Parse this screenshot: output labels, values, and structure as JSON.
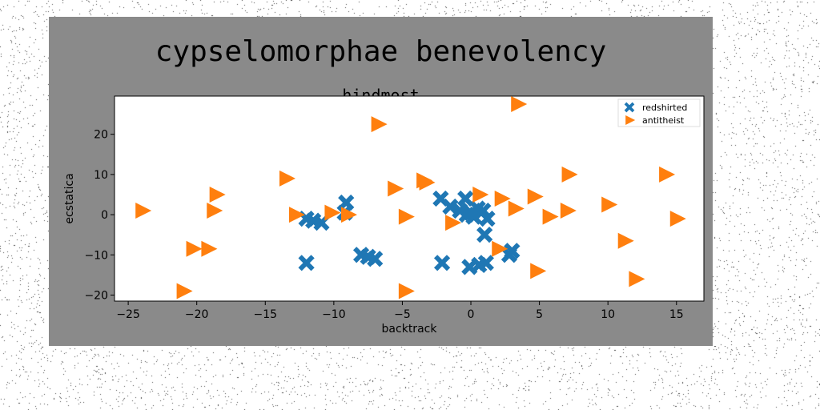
{
  "chart_data": {
    "type": "scatter",
    "title": "cypselomorphae benevolency",
    "subtitle": "hindmost",
    "xlabel": "backtrack",
    "ylabel": "ecstatica",
    "xlim": [
      -26,
      17
    ],
    "ylim": [
      -21.5,
      29.5
    ],
    "xticks": [
      -25,
      -20,
      -15,
      -10,
      -5,
      0,
      5,
      10,
      15
    ],
    "yticks": [
      -20,
      -10,
      0,
      10,
      20
    ],
    "xtick_labels": [
      "−25",
      "−20",
      "−15",
      "−10",
      "−5",
      "0",
      "5",
      "10",
      "15"
    ],
    "ytick_labels": [
      "−20",
      "−10",
      "0",
      "10",
      "20"
    ],
    "grid": false,
    "legend_position": "top-right",
    "series": [
      {
        "name": "redshirted",
        "marker": "x",
        "color": "#1f77b4",
        "points": [
          [
            -9.1,
            3.0
          ],
          [
            -9.2,
            0.5
          ],
          [
            -12.0,
            -1.0
          ],
          [
            -11.5,
            -1.5
          ],
          [
            -10.9,
            -2.0
          ],
          [
            -12.0,
            -12.0
          ],
          [
            -8.0,
            -10.0
          ],
          [
            -7.5,
            -10.5
          ],
          [
            -7.0,
            -11.0
          ],
          [
            -2.2,
            4.0
          ],
          [
            -1.5,
            2.0
          ],
          [
            -0.8,
            1.0
          ],
          [
            -0.4,
            4.0
          ],
          [
            -0.3,
            0.0
          ],
          [
            0.0,
            0.5
          ],
          [
            0.2,
            -0.5
          ],
          [
            0.5,
            1.5
          ],
          [
            0.9,
            1.0
          ],
          [
            1.2,
            -1.0
          ],
          [
            1.0,
            -5.0
          ],
          [
            3.0,
            -9.0
          ],
          [
            2.8,
            -10.0
          ],
          [
            -2.1,
            -12.0
          ],
          [
            -0.1,
            -13.0
          ],
          [
            0.6,
            -12.5
          ],
          [
            1.1,
            -12.0
          ]
        ]
      },
      {
        "name": "antitheist",
        "marker": ">",
        "color": "#ff7f0e",
        "points": [
          [
            -24.0,
            1.0
          ],
          [
            -21.0,
            -19.0
          ],
          [
            -20.3,
            -8.5
          ],
          [
            -19.2,
            -8.5
          ],
          [
            -18.6,
            5.0
          ],
          [
            -18.8,
            1.0
          ],
          [
            -13.5,
            9.0
          ],
          [
            -12.8,
            0.0
          ],
          [
            -10.2,
            0.5
          ],
          [
            -9.0,
            0.0
          ],
          [
            -6.8,
            22.5
          ],
          [
            -5.6,
            6.5
          ],
          [
            -4.8,
            -0.5
          ],
          [
            -4.8,
            -19.0
          ],
          [
            -3.5,
            8.5
          ],
          [
            -3.3,
            8.0
          ],
          [
            -1.4,
            -2.0
          ],
          [
            0.6,
            5.0
          ],
          [
            2.2,
            4.0
          ],
          [
            2.0,
            -8.5
          ],
          [
            3.4,
            27.5
          ],
          [
            3.2,
            1.5
          ],
          [
            4.6,
            4.5
          ],
          [
            4.8,
            -14.0
          ],
          [
            5.7,
            -0.5
          ],
          [
            7.0,
            1.0
          ],
          [
            7.1,
            10.0
          ],
          [
            10.0,
            2.5
          ],
          [
            11.2,
            -6.5
          ],
          [
            12.0,
            -16.0
          ],
          [
            14.2,
            10.0
          ],
          [
            15.0,
            -1.0
          ]
        ]
      }
    ]
  }
}
